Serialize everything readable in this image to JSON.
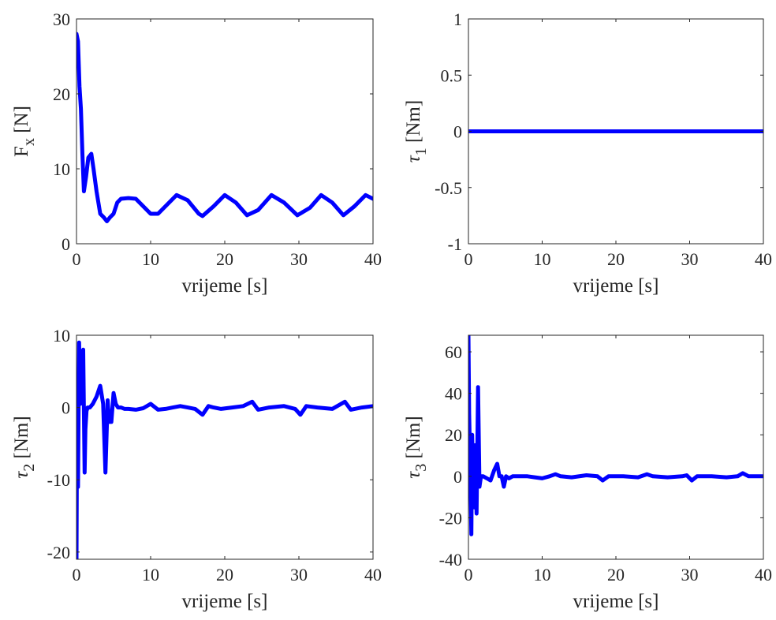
{
  "chart_data": [
    {
      "id": "fx",
      "type": "line",
      "title": "",
      "xlabel": "vrijeme [s]",
      "ylabel": {
        "main": "F",
        "sub": "x",
        "unit": " [N]",
        "italic": false
      },
      "xlim": [
        0,
        40
      ],
      "ylim": [
        0,
        30
      ],
      "xticks": [
        0,
        10,
        20,
        30,
        40
      ],
      "yticks": [
        0,
        10,
        20,
        30
      ],
      "ytick_labels": [
        "0",
        "10",
        "20",
        "30"
      ],
      "grid": false,
      "color": "#0000ff",
      "series": [
        {
          "x": [
            0,
            0.2,
            0.4,
            0.6,
            0.8,
            1.0,
            1.3,
            1.6,
            2.0,
            2.3,
            2.7,
            3.2,
            3.7,
            4.1,
            4.5,
            5.0,
            5.5,
            6.0,
            7.0,
            8.0,
            9.0,
            10.0,
            11.0,
            12.0,
            13.5,
            15.0,
            16.5,
            17.0,
            18.5,
            20.0,
            21.5,
            23.0,
            24.5,
            26.3,
            28.0,
            29.8,
            31.5,
            33.0,
            34.5,
            36.0,
            37.5,
            39.0,
            40.0
          ],
          "y": [
            28,
            27,
            21,
            18,
            12,
            7,
            9,
            11.5,
            12,
            10,
            7,
            4,
            3.5,
            3,
            3.5,
            4,
            5.5,
            6,
            6.1,
            6,
            5,
            4,
            4,
            5,
            6.5,
            5.8,
            4,
            3.7,
            5,
            6.5,
            5.5,
            3.8,
            4.5,
            6.5,
            5.5,
            3.8,
            4.8,
            6.5,
            5.5,
            3.8,
            5,
            6.5,
            6
          ]
        }
      ]
    },
    {
      "id": "tau1",
      "type": "line",
      "title": "",
      "xlabel": "vrijeme [s]",
      "ylabel": {
        "main": "τ",
        "sub": "1",
        "unit": " [Nm]",
        "italic": true
      },
      "xlim": [
        0,
        40
      ],
      "ylim": [
        -1,
        1
      ],
      "xticks": [
        0,
        10,
        20,
        30,
        40
      ],
      "yticks": [
        -1,
        -0.5,
        0,
        0.5,
        1
      ],
      "ytick_labels": [
        "-1",
        "-0.5",
        "0",
        "0.5",
        "1"
      ],
      "grid": false,
      "color": "#0000ff",
      "series": [
        {
          "x": [
            0,
            40
          ],
          "y": [
            0,
            0
          ]
        }
      ]
    },
    {
      "id": "tau2",
      "type": "line",
      "title": "",
      "xlabel": "vrijeme [s]",
      "ylabel": {
        "main": "τ",
        "sub": "2",
        "unit": " [Nm]",
        "italic": true
      },
      "xlim": [
        0,
        40
      ],
      "ylim": [
        -21,
        10
      ],
      "xticks": [
        0,
        10,
        20,
        30,
        40
      ],
      "yticks": [
        -20,
        -10,
        0,
        10
      ],
      "ytick_labels": [
        "-20",
        "-10",
        "0",
        "10"
      ],
      "grid": false,
      "color": "#0000ff",
      "series": [
        {
          "x": [
            0,
            0.1,
            0.2,
            0.35,
            0.5,
            0.7,
            0.9,
            1.1,
            1.2,
            1.35,
            1.5,
            1.8,
            2.2,
            2.7,
            3.2,
            3.6,
            3.9,
            4.2,
            4.4,
            4.7,
            5.0,
            5.3,
            5.6,
            6.0,
            6.5,
            7.0,
            8.0,
            9.0,
            10.0,
            11.0,
            12.0,
            13.0,
            14.0,
            15.0,
            16.0,
            17.0,
            17.8,
            18.5,
            19.5,
            21.0,
            22.5,
            23.7,
            24.5,
            26.0,
            28.0,
            29.5,
            30.2,
            31.0,
            32.5,
            34.5,
            36.2,
            37.0,
            38.5,
            40.0
          ],
          "y": [
            -21,
            4,
            -11,
            9,
            0.5,
            3,
            8,
            -9,
            -3,
            -0.5,
            0,
            0,
            0.5,
            1.5,
            3,
            0.5,
            -9,
            1,
            -2,
            -2,
            2,
            0.5,
            0,
            0,
            -0.2,
            -0.2,
            -0.3,
            -0.1,
            0.5,
            -0.3,
            -0.2,
            0,
            0.2,
            0,
            -0.2,
            -1,
            0.2,
            0,
            -0.2,
            0,
            0.2,
            0.8,
            -0.3,
            0,
            0.2,
            -0.2,
            -1,
            0.2,
            0,
            -0.2,
            0.8,
            -0.3,
            0,
            0.2
          ]
        }
      ]
    },
    {
      "id": "tau3",
      "type": "line",
      "title": "",
      "xlabel": "vrijeme [s]",
      "ylabel": {
        "main": "τ",
        "sub": "3",
        "unit": " [Nm]",
        "italic": true
      },
      "xlim": [
        0,
        40
      ],
      "ylim": [
        -40,
        68
      ],
      "xticks": [
        0,
        10,
        20,
        30,
        40
      ],
      "yticks": [
        -40,
        -20,
        0,
        20,
        40,
        60
      ],
      "ytick_labels": [
        "-40",
        "-20",
        "0",
        "20",
        "40",
        "60"
      ],
      "grid": false,
      "color": "#0000ff",
      "series": [
        {
          "x": [
            0,
            0.1,
            0.3,
            0.4,
            0.5,
            0.6,
            0.8,
            0.9,
            1.1,
            1.3,
            1.5,
            1.7,
            2.0,
            2.5,
            3.0,
            3.5,
            3.9,
            4.2,
            4.5,
            4.8,
            5.1,
            5.5,
            6.0,
            7.0,
            8.0,
            9.0,
            10.0,
            11.0,
            11.8,
            12.5,
            14.0,
            16.0,
            17.5,
            18.2,
            19.0,
            21.0,
            23.0,
            24.2,
            25.0,
            27.0,
            29.0,
            29.6,
            30.3,
            31.0,
            33.0,
            35.0,
            36.5,
            37.2,
            38.0,
            40.0
          ],
          "y": [
            68,
            30,
            -5,
            -28,
            20,
            0,
            -15,
            15,
            -18,
            43,
            -5,
            0,
            0,
            -1,
            -2,
            3,
            6,
            0,
            0,
            -5,
            0,
            -1,
            0,
            0,
            0,
            -0.5,
            -1,
            0,
            1,
            0,
            -0.5,
            0.5,
            0,
            -2,
            0,
            0,
            -0.5,
            1,
            0,
            -0.5,
            0,
            0.5,
            -2,
            0,
            0,
            -0.5,
            0,
            1.5,
            0,
            0
          ]
        }
      ]
    }
  ]
}
